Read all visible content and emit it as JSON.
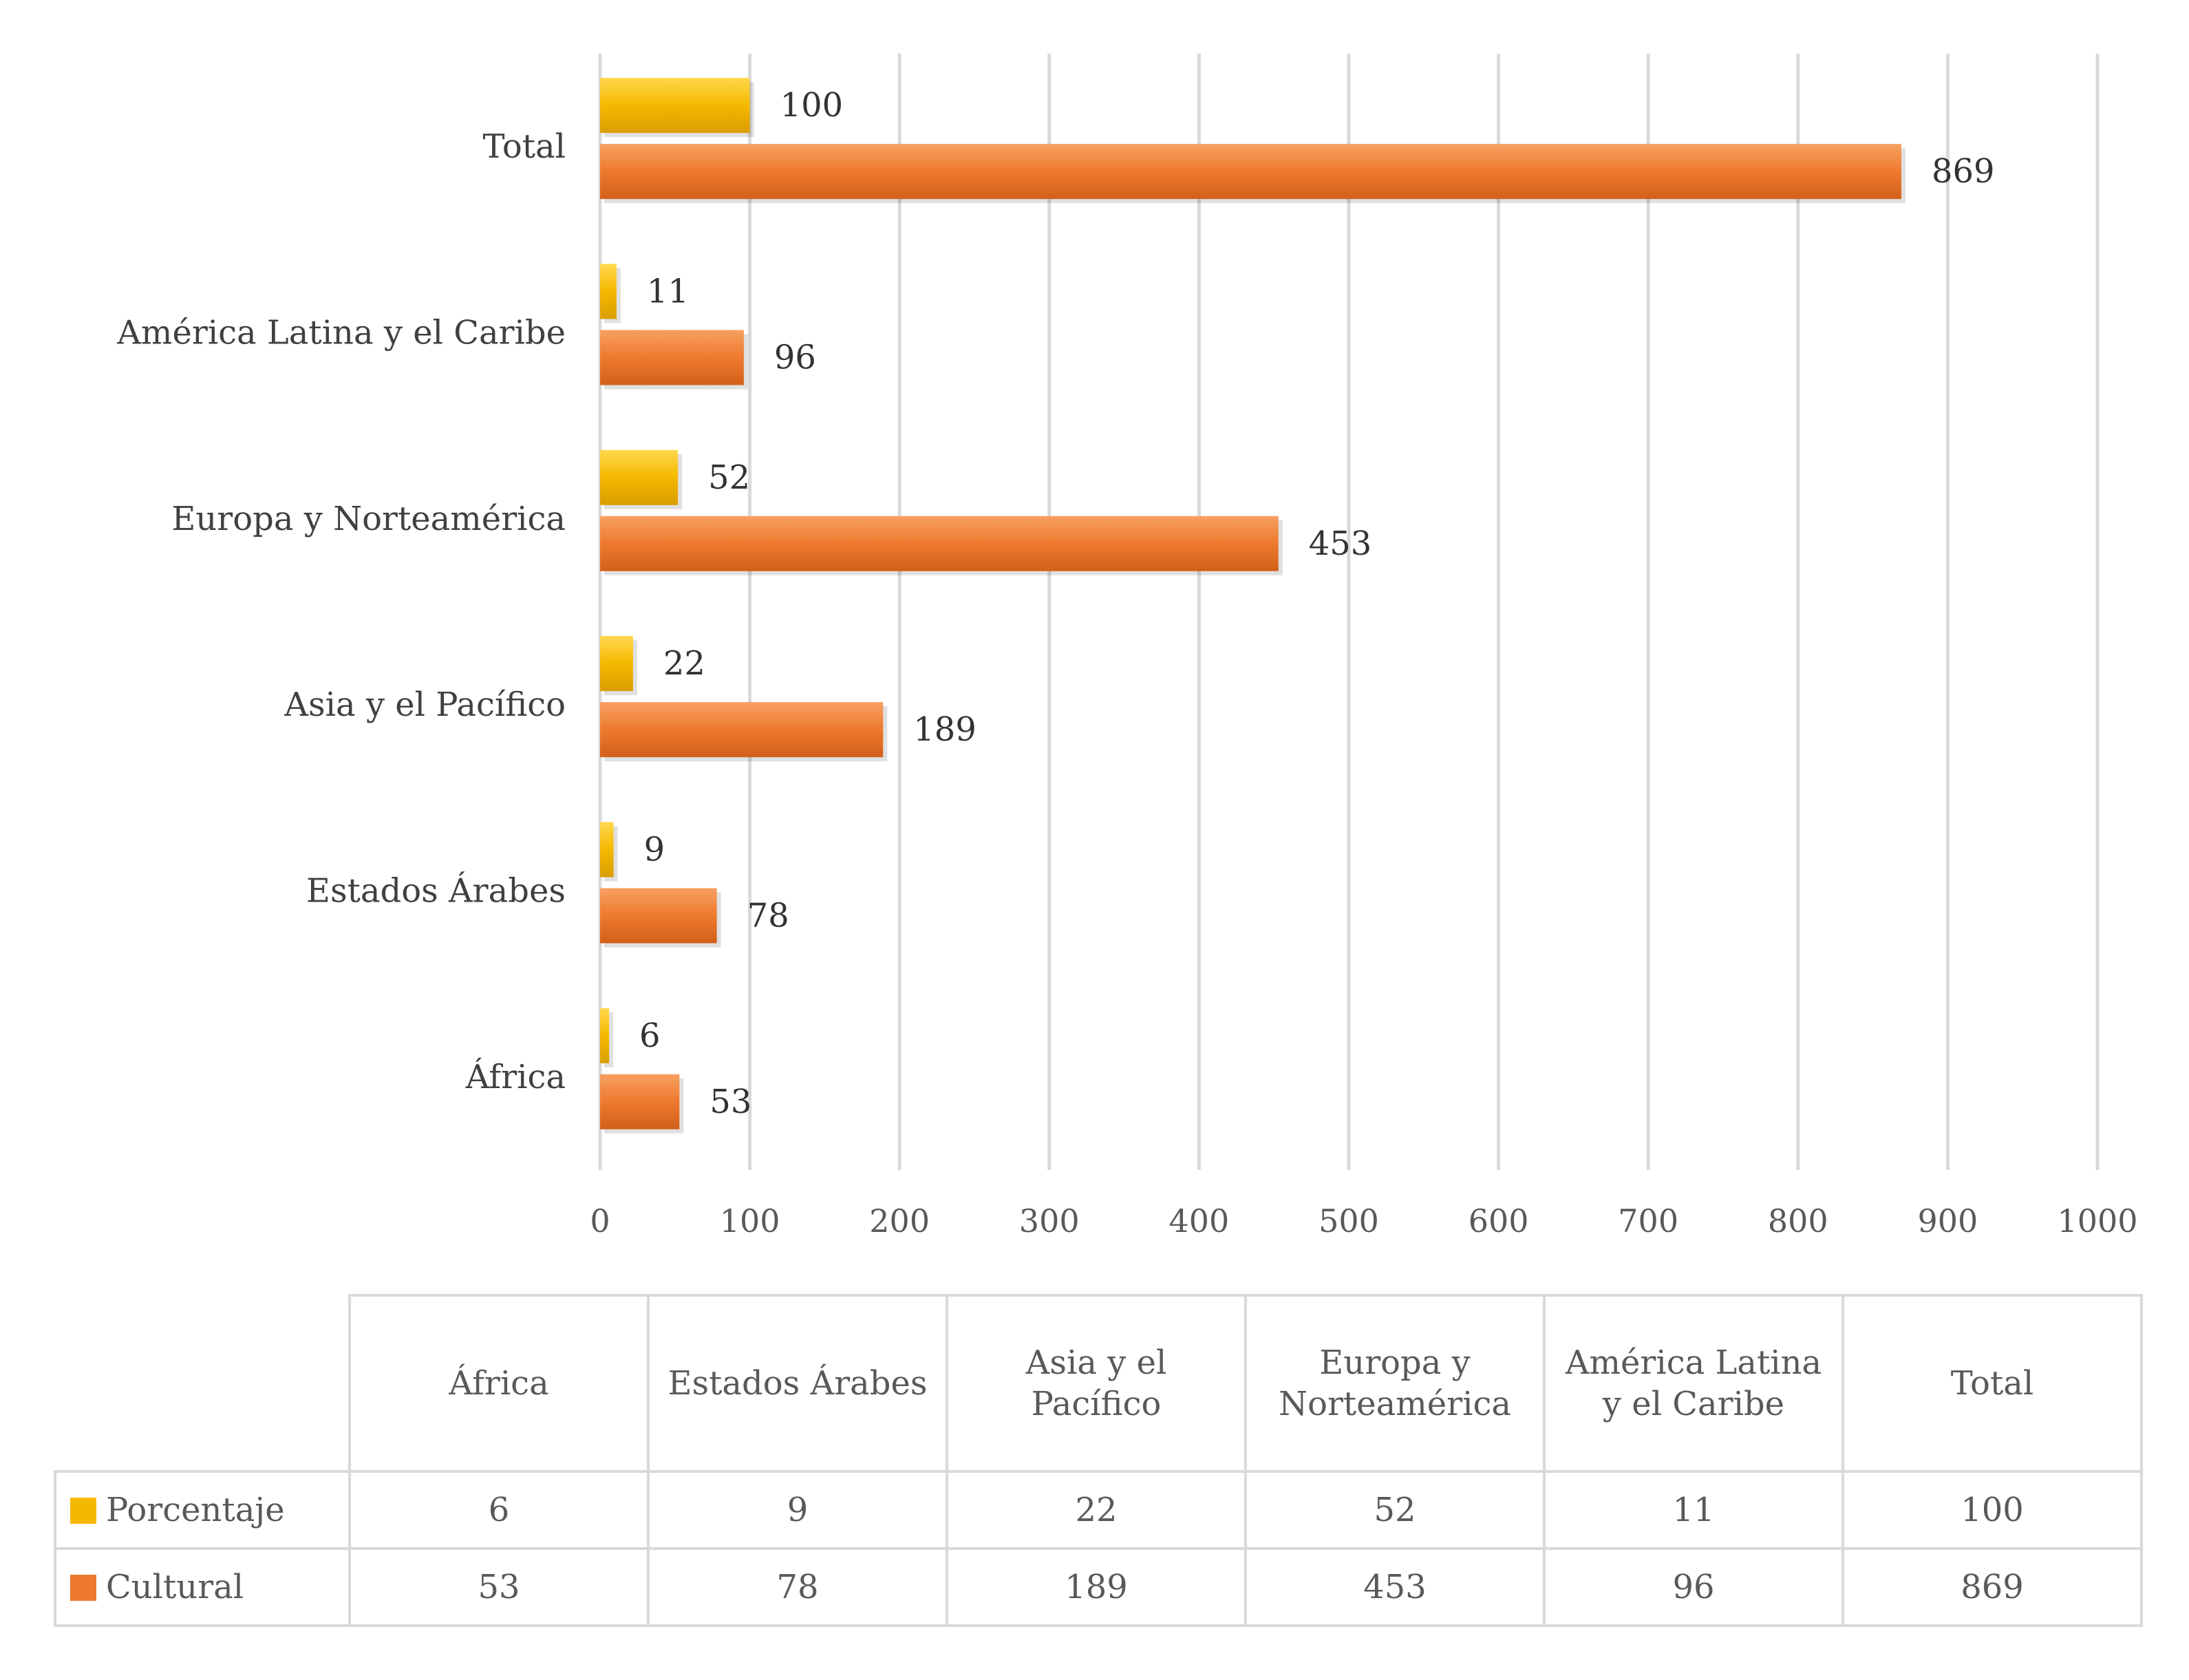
{
  "chart_data": {
    "type": "bar",
    "orientation": "horizontal",
    "categories": [
      "África",
      "Estados Árabes",
      "Asia y el Pacífico",
      "Europa y Norteamérica",
      "América Latina y el Caribe",
      "Total"
    ],
    "series": [
      {
        "name": "Porcentaje",
        "color": "#F5B800",
        "values": [
          6,
          9,
          22,
          52,
          11,
          100
        ]
      },
      {
        "name": "Cultural",
        "color": "#EE7A2E",
        "values": [
          53,
          78,
          189,
          453,
          96,
          869
        ]
      }
    ],
    "xlim": [
      0,
      1000
    ],
    "xticks": [
      "0",
      "100",
      "200",
      "300",
      "400",
      "500",
      "600",
      "700",
      "800",
      "900",
      "1000"
    ],
    "grid": "vertical",
    "data_labels": true
  },
  "table": {
    "headers": [
      "África",
      "Estados Árabes",
      "Asia y el Pacífico",
      "Europa y Norteamérica",
      "América Latina y el Caribe",
      "Total"
    ],
    "rows": [
      {
        "label": "Porcentaje",
        "color": "#F5B800",
        "values": [
          "6",
          "9",
          "22",
          "52",
          "11",
          "100"
        ]
      },
      {
        "label": "Cultural",
        "color": "#EE7A2E",
        "values": [
          "53",
          "78",
          "189",
          "453",
          "96",
          "869"
        ]
      }
    ]
  }
}
